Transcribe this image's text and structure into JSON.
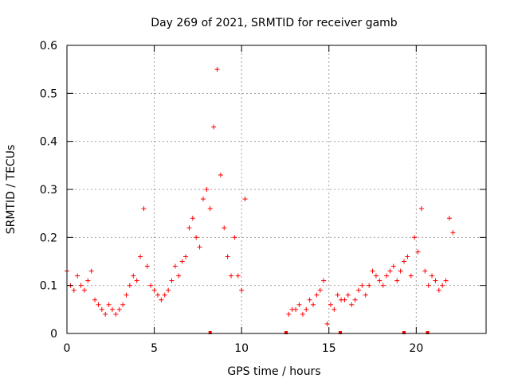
{
  "chart_data": {
    "type": "scatter",
    "title": "Day 269 of 2021, SRMTID for receiver gamb",
    "xlabel": "GPS time / hours",
    "ylabel": "SRMTID / TECUs",
    "xlim": [
      0,
      24
    ],
    "ylim": [
      0,
      0.6
    ],
    "xticks": [
      0,
      5,
      10,
      15,
      20
    ],
    "yticks": [
      0,
      0.1,
      0.2,
      0.3,
      0.4,
      0.5,
      0.6
    ],
    "xtick_labels": [
      "0",
      "5",
      "10",
      "15",
      "20"
    ],
    "ytick_labels": [
      "0",
      "0.1",
      "0.2",
      "0.3",
      "0.4",
      "0.5",
      "0.6"
    ],
    "grid": true,
    "marker": "+",
    "color": "#ff0000",
    "series": [
      {
        "name": "SRMTID",
        "x": [
          0.0,
          0.2,
          0.4,
          0.6,
          0.8,
          1.0,
          1.2,
          1.4,
          1.6,
          1.8,
          2.0,
          2.2,
          2.4,
          2.6,
          2.8,
          3.0,
          3.2,
          3.4,
          3.6,
          3.8,
          4.0,
          4.2,
          4.4,
          4.6,
          4.8,
          5.0,
          5.2,
          5.4,
          5.6,
          5.8,
          6.0,
          6.2,
          6.4,
          6.6,
          6.8,
          7.0,
          7.2,
          7.4,
          7.6,
          7.8,
          8.0,
          8.2,
          8.4,
          8.6,
          8.8,
          9.0,
          9.2,
          9.4,
          9.6,
          9.8,
          10.0,
          10.2,
          12.7,
          12.9,
          13.1,
          13.3,
          13.5,
          13.7,
          13.9,
          14.1,
          14.3,
          14.5,
          14.7,
          14.9,
          15.1,
          15.3,
          15.5,
          15.7,
          15.9,
          16.1,
          16.3,
          16.5,
          16.7,
          16.9,
          17.1,
          17.3,
          17.5,
          17.7,
          17.9,
          18.1,
          18.3,
          18.5,
          18.7,
          18.9,
          19.1,
          19.3,
          19.5,
          19.7,
          19.9,
          20.1,
          20.3,
          20.5,
          20.7,
          20.9,
          21.1,
          21.3,
          21.5,
          21.7,
          21.9,
          22.1
        ],
        "y": [
          0.13,
          0.1,
          0.09,
          0.12,
          0.1,
          0.09,
          0.11,
          0.13,
          0.07,
          0.06,
          0.05,
          0.04,
          0.06,
          0.05,
          0.04,
          0.05,
          0.06,
          0.08,
          0.1,
          0.12,
          0.11,
          0.16,
          0.26,
          0.14,
          0.1,
          0.09,
          0.08,
          0.07,
          0.08,
          0.09,
          0.11,
          0.14,
          0.12,
          0.15,
          0.16,
          0.22,
          0.24,
          0.2,
          0.18,
          0.28,
          0.3,
          0.26,
          0.43,
          0.55,
          0.33,
          0.22,
          0.16,
          0.12,
          0.2,
          0.12,
          0.09,
          0.28,
          0.04,
          0.05,
          0.05,
          0.06,
          0.04,
          0.05,
          0.07,
          0.06,
          0.08,
          0.09,
          0.11,
          0.02,
          0.06,
          0.05,
          0.08,
          0.07,
          0.07,
          0.08,
          0.06,
          0.07,
          0.09,
          0.1,
          0.08,
          0.1,
          0.13,
          0.12,
          0.11,
          0.1,
          0.12,
          0.13,
          0.14,
          0.11,
          0.13,
          0.15,
          0.16,
          0.12,
          0.2,
          0.17,
          0.26,
          0.13,
          0.1,
          0.12,
          0.11,
          0.09,
          0.1,
          0.11,
          0.24,
          0.21
        ]
      }
    ],
    "gap_markers_x": [
      8.2,
      12.55,
      15.65,
      19.3,
      20.65
    ]
  }
}
